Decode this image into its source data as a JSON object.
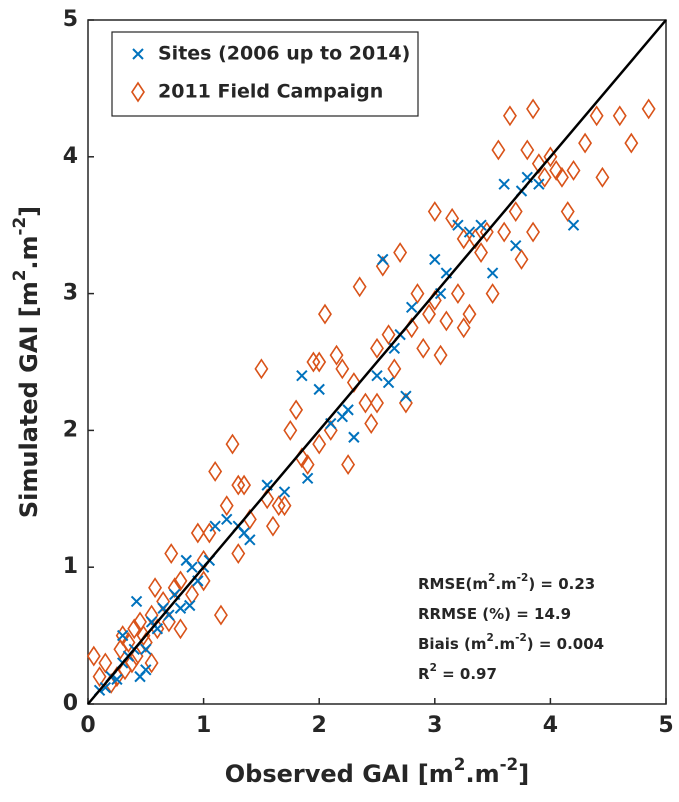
{
  "chart_data": {
    "type": "scatter",
    "x_label": [
      "Observed GAI [m",
      "2",
      ".m",
      "-2",
      "]"
    ],
    "y_label": [
      "Simulated GAI [m",
      "2",
      ".m",
      "-2",
      "]"
    ],
    "xlim": [
      0,
      5
    ],
    "ylim": [
      0,
      5
    ],
    "xticks": [
      0,
      1,
      2,
      3,
      4,
      5
    ],
    "yticks": [
      0,
      1,
      2,
      3,
      4,
      5
    ],
    "annotations": [
      [
        "RMSE(m",
        "2",
        ".m",
        "-2",
        ") = 0.23"
      ],
      [
        "RRMSE (%) = 14.9"
      ],
      [
        "Biais (m",
        "2",
        ".m",
        "-2",
        ") = 0.004"
      ],
      [
        "R",
        "2",
        " = 0.97"
      ]
    ],
    "series": [
      {
        "name": "Sites (2006 up to 2014)",
        "color": "#0072bd",
        "marker": "x",
        "x": [
          0.1,
          0.15,
          0.2,
          0.25,
          0.3,
          0.35,
          0.4,
          0.42,
          0.45,
          0.5,
          0.55,
          0.6,
          0.7,
          0.75,
          0.8,
          0.85,
          0.88,
          0.9,
          0.95,
          1.0,
          1.05,
          1.1,
          1.2,
          1.3,
          1.35,
          1.4,
          1.55,
          1.7,
          1.85,
          1.9,
          2.0,
          2.1,
          2.2,
          2.25,
          2.3,
          2.5,
          2.6,
          2.65,
          2.7,
          2.75,
          2.8,
          3.0,
          3.05,
          3.1,
          3.2,
          3.3,
          3.4,
          3.5,
          3.6,
          3.7,
          3.75,
          3.8,
          3.9,
          4.2,
          2.55,
          0.3,
          0.5,
          0.65
        ],
        "values": [
          0.1,
          0.12,
          0.2,
          0.18,
          0.3,
          0.35,
          0.4,
          0.75,
          0.2,
          0.25,
          0.6,
          0.55,
          0.65,
          0.8,
          0.7,
          1.05,
          0.72,
          1.0,
          0.9,
          1.0,
          1.05,
          1.3,
          1.35,
          1.3,
          1.25,
          1.2,
          1.6,
          1.55,
          2.4,
          1.65,
          2.3,
          2.05,
          2.1,
          2.15,
          1.95,
          2.4,
          2.35,
          2.6,
          2.7,
          2.25,
          2.9,
          3.25,
          3.0,
          3.15,
          3.5,
          3.45,
          3.5,
          3.15,
          3.8,
          3.35,
          3.75,
          3.85,
          3.8,
          3.5,
          3.25,
          0.5,
          0.4,
          0.7
        ]
      },
      {
        "name": "2011 Field Campaign",
        "color": "#d95319",
        "marker": "diamond",
        "x": [
          0.05,
          0.1,
          0.15,
          0.2,
          0.25,
          0.28,
          0.3,
          0.32,
          0.35,
          0.38,
          0.4,
          0.42,
          0.45,
          0.48,
          0.5,
          0.55,
          0.58,
          0.6,
          0.65,
          0.7,
          0.72,
          0.75,
          0.8,
          0.9,
          1.0,
          1.05,
          1.1,
          1.15,
          1.2,
          1.25,
          1.3,
          1.35,
          1.4,
          1.5,
          1.55,
          1.6,
          1.65,
          1.7,
          1.75,
          1.8,
          1.85,
          1.9,
          1.95,
          2.0,
          2.05,
          2.1,
          2.15,
          2.2,
          2.25,
          2.3,
          2.35,
          2.4,
          2.45,
          2.5,
          2.55,
          2.6,
          2.65,
          2.7,
          2.75,
          2.8,
          2.85,
          2.9,
          2.95,
          3.0,
          3.05,
          3.1,
          3.15,
          3.2,
          3.25,
          3.3,
          3.35,
          3.4,
          3.45,
          3.5,
          3.55,
          3.6,
          3.65,
          3.7,
          3.75,
          3.8,
          3.85,
          3.9,
          3.95,
          4.0,
          4.05,
          4.1,
          4.2,
          4.3,
          4.4,
          4.6,
          4.7,
          4.85,
          3.85,
          4.45,
          3.0,
          0.55,
          0.8,
          1.0,
          2.0,
          2.5,
          3.25,
          4.15,
          1.3,
          0.95
        ],
        "values": [
          0.35,
          0.2,
          0.3,
          0.15,
          0.2,
          0.4,
          0.5,
          0.25,
          0.45,
          0.3,
          0.55,
          0.35,
          0.6,
          0.5,
          0.45,
          0.65,
          0.85,
          0.55,
          0.75,
          0.6,
          1.1,
          0.85,
          0.9,
          0.8,
          1.05,
          1.25,
          1.7,
          0.65,
          1.45,
          1.9,
          1.1,
          1.6,
          1.35,
          2.45,
          1.5,
          1.3,
          1.45,
          1.45,
          2.0,
          2.15,
          1.8,
          1.75,
          2.5,
          1.9,
          2.85,
          2.0,
          2.55,
          2.45,
          1.75,
          2.35,
          3.05,
          2.2,
          2.05,
          2.6,
          3.2,
          2.7,
          2.45,
          3.3,
          2.2,
          2.75,
          3.0,
          2.6,
          2.85,
          2.95,
          2.55,
          2.8,
          3.55,
          3.0,
          2.75,
          2.85,
          3.4,
          3.3,
          3.45,
          3.0,
          4.05,
          3.45,
          4.3,
          3.6,
          3.25,
          4.05,
          3.45,
          3.95,
          3.85,
          4.0,
          3.9,
          3.85,
          3.9,
          4.1,
          4.3,
          4.3,
          4.1,
          4.35,
          4.35,
          3.85,
          3.6,
          0.3,
          0.55,
          0.9,
          2.5,
          2.2,
          3.4,
          3.6,
          1.6,
          1.25
        ]
      }
    ]
  }
}
